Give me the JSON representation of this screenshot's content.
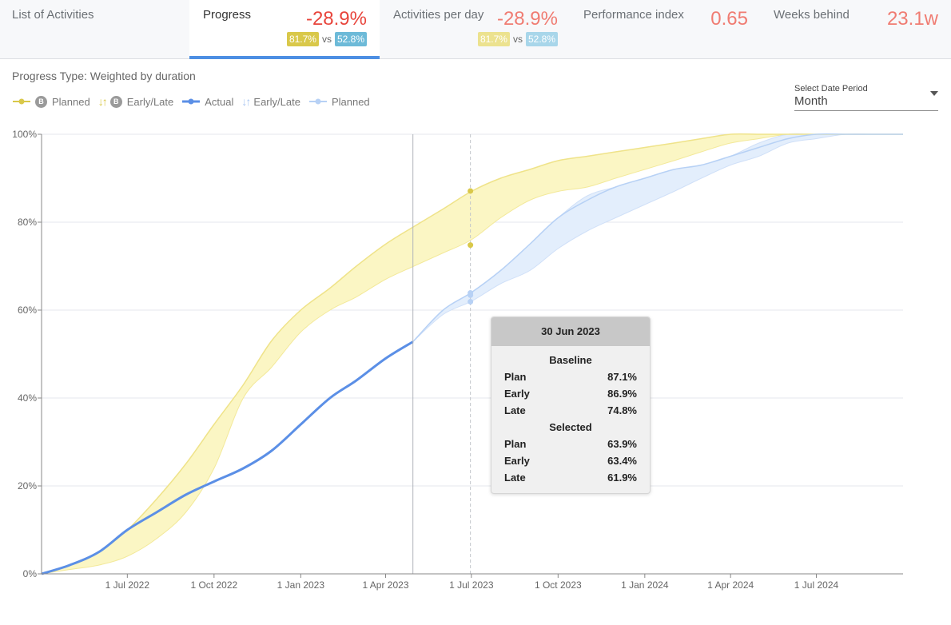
{
  "tabs": [
    {
      "id": "list",
      "label": "List of Activities",
      "value": "",
      "chip_b": "",
      "chip_s": "",
      "vs": "",
      "active": false
    },
    {
      "id": "progress",
      "label": "Progress",
      "value": "-28.9%",
      "chip_b": "81.7%",
      "chip_s": "52.8%",
      "vs": "vs",
      "active": true
    },
    {
      "id": "apd",
      "label": "Activities per day",
      "value": "-28.9%",
      "chip_b": "81.7%",
      "chip_s": "52.8%",
      "vs": "vs",
      "active": false
    },
    {
      "id": "perf",
      "label": "Performance index",
      "value": "0.65",
      "active": false
    },
    {
      "id": "weeks",
      "label": "Weeks behind",
      "value": "23.1w",
      "active": false
    }
  ],
  "subtitle": "Progress Type: Weighted by duration",
  "legend": {
    "baseline_badge": "B",
    "planned_b": "Planned",
    "early_late_b": "Early/Late",
    "actual": "Actual",
    "early_late": "Early/Late",
    "planned": "Planned",
    "arrows": "↓↑"
  },
  "period": {
    "label": "Select Date Period",
    "value": "Month"
  },
  "colors": {
    "baseline": "#d9c84a",
    "baseline_band": "#fbf6c4",
    "actual": "#5b8fe6",
    "selected_band": "#e3eefc",
    "selected_line": "#b7d1f5"
  },
  "chart_data": {
    "type": "area",
    "x_ticks": [
      "1 Jul 2022",
      "1 Oct 2022",
      "1 Jan 2023",
      "1 Apr 2023",
      "1 Jul 2023",
      "1 Oct 2023",
      "1 Jan 2024",
      "1 Apr 2024",
      "1 Jul 2024"
    ],
    "y_ticks": [
      "0%",
      "20%",
      "40%",
      "60%",
      "80%",
      "100%"
    ],
    "ylim": [
      0,
      100
    ],
    "xlim": [
      "2022-04-01",
      "2024-10-01"
    ],
    "data_date": "2023-04-30",
    "hover_date": "2023-06-30",
    "series": [
      {
        "name": "Planned",
        "role": "baseline_plan",
        "x": [
          "2022-04-01",
          "2022-05-01",
          "2022-06-01",
          "2022-07-01",
          "2022-08-01",
          "2022-09-01",
          "2022-10-01",
          "2022-11-01",
          "2022-12-01",
          "2023-01-01",
          "2023-02-01",
          "2023-03-01",
          "2023-04-01",
          "2023-05-01",
          "2023-06-01",
          "2023-07-01",
          "2023-08-01",
          "2023-09-01",
          "2023-10-01",
          "2023-11-01",
          "2023-12-01",
          "2024-01-01",
          "2024-02-01",
          "2024-03-01",
          "2024-04-01",
          "2024-05-01",
          "2024-06-01",
          "2024-07-01",
          "2024-08-01",
          "2024-09-01",
          "2024-10-01"
        ],
        "values": [
          0,
          2,
          5,
          10,
          17,
          25,
          34,
          43,
          53,
          60,
          65,
          70,
          75,
          79,
          83,
          87,
          90,
          92,
          94,
          95,
          96,
          97,
          98,
          99,
          100,
          100,
          100,
          100,
          100,
          100,
          100
        ]
      },
      {
        "name": "Early",
        "role": "baseline_early",
        "x": [
          "2022-04-01",
          "2022-05-01",
          "2022-06-01",
          "2022-07-01",
          "2022-08-01",
          "2022-09-01",
          "2022-10-01",
          "2022-11-01",
          "2022-12-01",
          "2023-01-01",
          "2023-02-01",
          "2023-03-01",
          "2023-04-01",
          "2023-05-01",
          "2023-06-01",
          "2023-07-01",
          "2023-08-01",
          "2023-09-01",
          "2023-10-01",
          "2023-11-01",
          "2023-12-01",
          "2024-01-01",
          "2024-02-01",
          "2024-03-01",
          "2024-04-01",
          "2024-05-01",
          "2024-06-01",
          "2024-07-01",
          "2024-08-01",
          "2024-09-01",
          "2024-10-01"
        ],
        "values": [
          0,
          2,
          5,
          10,
          17,
          25,
          34,
          43,
          53,
          60,
          65,
          70,
          75,
          79,
          83,
          87,
          90,
          92,
          94,
          95,
          96,
          97,
          98,
          99,
          100,
          100,
          100,
          100,
          100,
          100,
          100
        ]
      },
      {
        "name": "Late",
        "role": "baseline_late",
        "x": [
          "2022-04-01",
          "2022-05-01",
          "2022-06-01",
          "2022-07-01",
          "2022-08-01",
          "2022-09-01",
          "2022-10-01",
          "2022-11-01",
          "2022-12-01",
          "2023-01-01",
          "2023-02-01",
          "2023-03-01",
          "2023-04-01",
          "2023-05-01",
          "2023-06-01",
          "2023-07-01",
          "2023-08-01",
          "2023-09-01",
          "2023-10-01",
          "2023-11-01",
          "2023-12-01",
          "2024-01-01",
          "2024-02-01",
          "2024-03-01",
          "2024-04-01",
          "2024-05-01",
          "2024-06-01",
          "2024-07-01",
          "2024-08-01",
          "2024-09-01",
          "2024-10-01"
        ],
        "values": [
          0,
          1,
          2,
          4,
          8,
          14,
          24,
          40,
          47,
          55,
          60,
          63,
          67,
          70,
          73,
          76,
          81,
          85,
          87,
          88,
          90,
          92,
          94,
          96,
          98,
          99,
          100,
          100,
          100,
          100,
          100
        ]
      },
      {
        "name": "Actual",
        "role": "actual",
        "x": [
          "2022-04-01",
          "2022-05-01",
          "2022-06-01",
          "2022-07-01",
          "2022-08-01",
          "2022-09-01",
          "2022-10-01",
          "2022-11-01",
          "2022-12-01",
          "2023-01-01",
          "2023-02-01",
          "2023-03-01",
          "2023-04-01",
          "2023-04-30"
        ],
        "values": [
          0,
          2,
          5,
          10,
          14,
          18,
          21,
          24,
          28,
          34,
          40,
          44,
          49,
          52.8
        ]
      },
      {
        "name": "Planned",
        "role": "selected_plan",
        "x": [
          "2023-04-30",
          "2023-06-01",
          "2023-07-01",
          "2023-08-01",
          "2023-09-01",
          "2023-10-01",
          "2023-11-01",
          "2023-12-01",
          "2024-01-01",
          "2024-02-01",
          "2024-03-01",
          "2024-04-01",
          "2024-05-01",
          "2024-06-01",
          "2024-07-01",
          "2024-08-01",
          "2024-09-01",
          "2024-10-01"
        ],
        "values": [
          52.8,
          60,
          64,
          69,
          75,
          81,
          85,
          88,
          90,
          92,
          93,
          95,
          97,
          99,
          100,
          100,
          100,
          100
        ]
      },
      {
        "name": "Early",
        "role": "selected_early",
        "x": [
          "2023-04-30",
          "2023-06-01",
          "2023-07-01",
          "2023-08-01",
          "2023-09-01",
          "2023-10-01",
          "2023-11-01",
          "2023-12-01",
          "2024-01-01",
          "2024-02-01",
          "2024-03-01",
          "2024-04-01",
          "2024-05-01",
          "2024-06-01",
          "2024-07-01",
          "2024-08-01",
          "2024-09-01",
          "2024-10-01"
        ],
        "values": [
          52.8,
          60,
          64,
          69,
          75,
          81,
          86,
          88,
          90,
          92,
          93,
          95,
          98,
          100,
          100,
          100,
          100,
          100
        ]
      },
      {
        "name": "Late",
        "role": "selected_late",
        "x": [
          "2023-04-30",
          "2023-06-01",
          "2023-07-01",
          "2023-08-01",
          "2023-09-01",
          "2023-10-01",
          "2023-11-01",
          "2023-12-01",
          "2024-01-01",
          "2024-02-01",
          "2024-03-01",
          "2024-04-01",
          "2024-05-01",
          "2024-06-01",
          "2024-07-01",
          "2024-08-01",
          "2024-09-01",
          "2024-10-01"
        ],
        "values": [
          52.8,
          59,
          62,
          66,
          69,
          74,
          78,
          81,
          84,
          87,
          90,
          93,
          95,
          98,
          99,
          100,
          100,
          100
        ]
      }
    ],
    "markers": [
      {
        "x": "2023-06-30",
        "y": 87.1,
        "role": "baseline"
      },
      {
        "x": "2023-06-30",
        "y": 74.8,
        "role": "baseline"
      },
      {
        "x": "2023-06-30",
        "y": 63.9,
        "role": "selected"
      },
      {
        "x": "2023-06-30",
        "y": 63.4,
        "role": "selected"
      },
      {
        "x": "2023-06-30",
        "y": 61.9,
        "role": "selected"
      }
    ]
  },
  "tooltip": {
    "date": "30 Jun 2023",
    "baseline_title": "Baseline",
    "selected_title": "Selected",
    "baseline": [
      {
        "label": "Plan",
        "value": "87.1%"
      },
      {
        "label": "Early",
        "value": "86.9%"
      },
      {
        "label": "Late",
        "value": "74.8%"
      }
    ],
    "selected": [
      {
        "label": "Plan",
        "value": "63.9%"
      },
      {
        "label": "Early",
        "value": "63.4%"
      },
      {
        "label": "Late",
        "value": "61.9%"
      }
    ]
  }
}
